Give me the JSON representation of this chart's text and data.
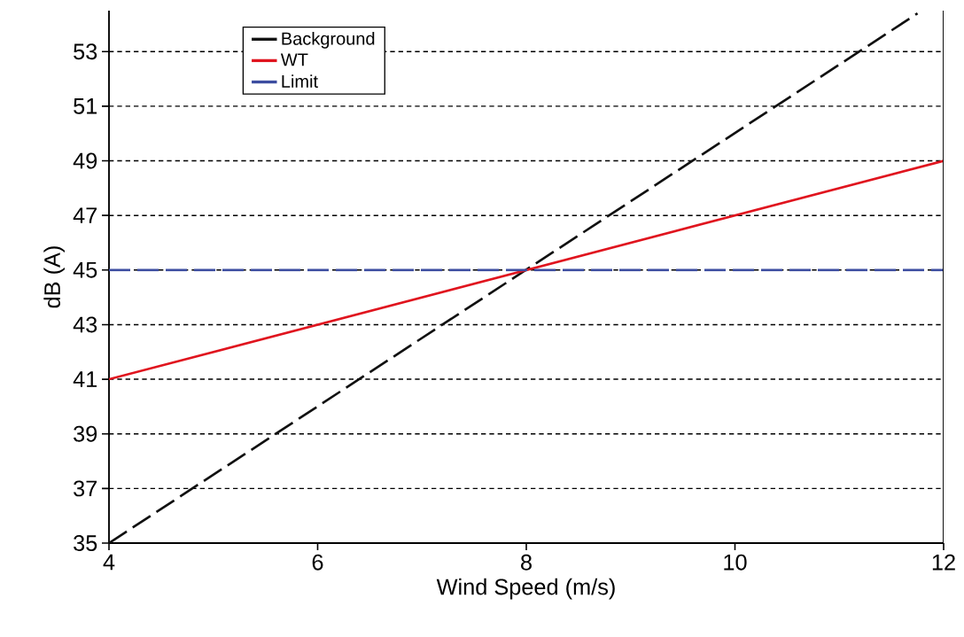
{
  "chart_data": {
    "type": "line",
    "xlabel": "Wind Speed (m/s)",
    "ylabel": "dB (A)",
    "xlim": [
      4,
      12
    ],
    "xticks": [
      4,
      6,
      8,
      10,
      12
    ],
    "ylim": [
      35,
      54.5
    ],
    "yticks": [
      35,
      37,
      39,
      41,
      43,
      45,
      47,
      49,
      51,
      53
    ],
    "grid": "y",
    "legend": "top left",
    "marker": "none",
    "series": [
      {
        "name": "Background",
        "color": "#111111",
        "x": [
          4,
          11.75
        ],
        "values": [
          35,
          54.4
        ],
        "line_style": "dashed"
      },
      {
        "name": "WT",
        "color": "#e0141e",
        "x": [
          4,
          12
        ],
        "values": [
          41,
          49
        ],
        "line_style": "solid"
      },
      {
        "name": "Limit",
        "color": "#3c4da0",
        "x": [
          4,
          12
        ],
        "values": [
          45,
          45
        ],
        "line_style": "dashed"
      }
    ]
  }
}
